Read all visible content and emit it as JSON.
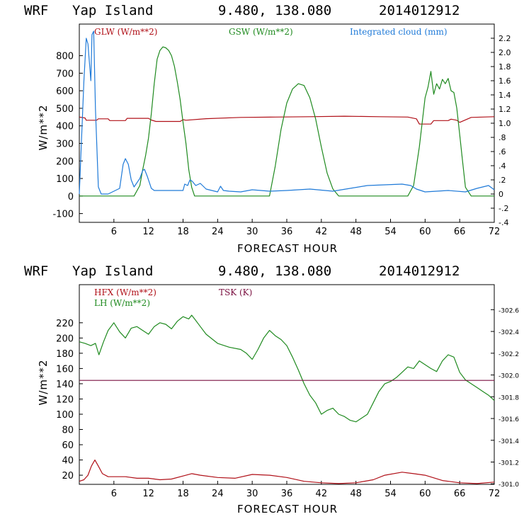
{
  "charts": [
    {
      "title": {
        "model": "WRF",
        "location": "Yap Island",
        "coords": "9.480, 138.080",
        "run": "2014012912"
      },
      "xlabel": "FORECAST HOUR",
      "ylabel": "W/m**2",
      "legend": {
        "glw": "GLW (W/m**2)",
        "gsw": "GSW (W/m**2)",
        "cloud": "Integrated cloud (mm)"
      }
    },
    {
      "title": {
        "model": "WRF",
        "location": "Yap Island",
        "coords": "9.480, 138.080",
        "run": "2014012912"
      },
      "xlabel": "FORECAST HOUR",
      "ylabel": "W/m**2",
      "legend": {
        "hfx": "HFX (W/m**2)",
        "lh": "LH (W/m**2)",
        "tsk": "TSK (K)"
      }
    }
  ],
  "colors": {
    "glw": "#b01018",
    "gsw": "#1f8a1f",
    "cloud": "#1f7ad8",
    "hfx": "#b01018",
    "lh": "#1f8a1f",
    "tsk": "#7a1040"
  },
  "chart_data": [
    {
      "type": "line",
      "xlim": [
        0,
        72
      ],
      "ylim_left": [
        -150,
        980
      ],
      "ylim_right": [
        -0.4,
        2.4
      ],
      "x_ticks": [
        6,
        12,
        18,
        24,
        30,
        36,
        42,
        48,
        54,
        60,
        66,
        72
      ],
      "y_ticks_left": [
        -100,
        0,
        100,
        200,
        300,
        400,
        500,
        600,
        700,
        800
      ],
      "y_ticks_right": [
        "-.4",
        "-.2",
        "0",
        ".2",
        ".4",
        ".6",
        ".8",
        "1.0",
        "1.2",
        "1.4",
        "1.6",
        "1.8",
        "2.0",
        "2.2"
      ],
      "series": [
        {
          "name": "GLW (W/m**2)",
          "axis": "left",
          "x": [
            0,
            1,
            1.2,
            3,
            3.3,
            5,
            5.3,
            8,
            8.3,
            12,
            12.5,
            13.3,
            17.5,
            18,
            18.5,
            22,
            28,
            34,
            40,
            46,
            52,
            57,
            58.5,
            59,
            61,
            61.5,
            64,
            64.5,
            65.5,
            66,
            68,
            72
          ],
          "y": [
            450,
            445,
            432,
            432,
            440,
            440,
            430,
            430,
            443,
            443,
            433,
            425,
            425,
            435,
            432,
            441,
            448,
            450,
            452,
            455,
            452,
            450,
            440,
            410,
            410,
            430,
            430,
            438,
            432,
            420,
            448,
            452
          ]
        },
        {
          "name": "GSW (W/m**2)",
          "axis": "left",
          "x": [
            0,
            9.5,
            10.5,
            11,
            11.5,
            12,
            12.5,
            13,
            13.5,
            14,
            14.5,
            15,
            15.5,
            16,
            16.5,
            17,
            17.5,
            18,
            18.5,
            19,
            19.5,
            20,
            33,
            34,
            35,
            36,
            37,
            38,
            39,
            40,
            41,
            42,
            43,
            44,
            45,
            57,
            58,
            59,
            60,
            60.5,
            61,
            61.5,
            62,
            62.5,
            63,
            63.5,
            64,
            64.5,
            65,
            65.5,
            66,
            66.5,
            67,
            68,
            72
          ],
          "y": [
            0,
            0,
            60,
            150,
            230,
            330,
            470,
            640,
            780,
            830,
            850,
            845,
            830,
            800,
            740,
            650,
            550,
            420,
            300,
            150,
            50,
            0,
            0,
            170,
            380,
            530,
            610,
            640,
            630,
            560,
            440,
            280,
            130,
            40,
            0,
            0,
            60,
            280,
            560,
            620,
            710,
            580,
            640,
            610,
            665,
            640,
            670,
            600,
            590,
            500,
            350,
            200,
            50,
            0,
            0
          ]
        },
        {
          "name": "Integrated cloud (mm)",
          "axis": "right",
          "x": [
            0,
            0.8,
            1.2,
            1.5,
            2,
            2.2,
            2.5,
            2.8,
            3.3,
            3.8,
            5,
            7,
            7.6,
            8,
            8.5,
            9,
            9.5,
            10.5,
            11,
            11.3,
            11.8,
            12.5,
            13,
            18,
            18.3,
            18.8,
            19.2,
            19.6,
            20.2,
            21,
            22,
            23,
            24,
            24.5,
            25,
            26,
            28,
            30,
            33,
            36,
            40,
            44,
            50,
            56,
            57.5,
            58.5,
            60,
            64,
            67,
            69,
            71,
            72
          ],
          "y": [
            0,
            1.6,
            2.2,
            2.12,
            1.6,
            2.25,
            2.3,
            1.2,
            0.1,
            0,
            0,
            0.08,
            0.42,
            0.5,
            0.42,
            0.2,
            0.1,
            0.22,
            0.33,
            0.35,
            0.25,
            0.08,
            0.05,
            0.05,
            0.14,
            0.12,
            0.2,
            0.18,
            0.12,
            0.15,
            0.07,
            0.05,
            0.03,
            0.11,
            0.05,
            0.04,
            0.03,
            0.06,
            0.04,
            0.05,
            0.07,
            0.04,
            0.12,
            0.14,
            0.12,
            0.07,
            0.03,
            0.05,
            0.03,
            0.08,
            0.12,
            0.06
          ]
        }
      ]
    },
    {
      "type": "line",
      "xlim": [
        0,
        72
      ],
      "ylim_left": [
        8,
        270
      ],
      "ylim_right": [
        300.995,
        302.83
      ],
      "x_ticks": [
        6,
        12,
        18,
        24,
        30,
        36,
        42,
        48,
        54,
        60,
        66,
        72
      ],
      "y_ticks_left": [
        20,
        40,
        60,
        80,
        100,
        120,
        140,
        160,
        180,
        200,
        220
      ],
      "y_ticks_right": [
        "301.0",
        "301.2",
        "301.4",
        "301.6",
        "301.8",
        "302.0",
        "302.2",
        "302.4",
        "302.6"
      ],
      "series": [
        {
          "name": "HFX (W/m**2)",
          "axis": "left",
          "x": [
            0,
            0.8,
            1.5,
            2.1,
            2.7,
            3.3,
            4,
            5,
            6,
            8,
            10,
            12,
            14,
            16,
            18,
            19.5,
            21,
            24,
            27,
            30,
            33,
            36,
            39,
            42,
            45,
            48,
            51,
            53,
            56,
            58,
            60,
            63,
            66,
            69,
            72
          ],
          "y": [
            12,
            14,
            20,
            32,
            40,
            32,
            22,
            18,
            18,
            18,
            16,
            16,
            14,
            15,
            19,
            22,
            20,
            17,
            16,
            21,
            20,
            17,
            12,
            10,
            9,
            10,
            14,
            20,
            24,
            22,
            20,
            13,
            10,
            9,
            11
          ]
        },
        {
          "name": "LH (W/m**2)",
          "axis": "left",
          "x": [
            0,
            1,
            2,
            2.8,
            3.4,
            4.2,
            5,
            6,
            7,
            8,
            9,
            10,
            11,
            12,
            13,
            14,
            15,
            16,
            17,
            18,
            19,
            19.5,
            20,
            21,
            22,
            24,
            26,
            28,
            29,
            30,
            31,
            32,
            33,
            34,
            35,
            36,
            37,
            38,
            39,
            40,
            41,
            42,
            43,
            44,
            45,
            46,
            47,
            48,
            49,
            50,
            51,
            52,
            53,
            54,
            55,
            56,
            57,
            58,
            59,
            60,
            61,
            62,
            63,
            64,
            65,
            66,
            67,
            68,
            69,
            70,
            71,
            72
          ],
          "y": [
            195,
            193,
            190,
            193,
            178,
            195,
            210,
            220,
            208,
            200,
            213,
            215,
            210,
            205,
            215,
            220,
            218,
            212,
            222,
            228,
            225,
            230,
            225,
            215,
            205,
            193,
            188,
            185,
            180,
            172,
            185,
            200,
            210,
            203,
            198,
            190,
            175,
            158,
            140,
            125,
            115,
            100,
            105,
            108,
            100,
            97,
            92,
            90,
            95,
            100,
            115,
            130,
            140,
            143,
            148,
            155,
            162,
            160,
            170,
            165,
            160,
            156,
            170,
            178,
            175,
            155,
            145,
            140,
            135,
            130,
            125,
            118
          ]
        },
        {
          "name": "TSK (K)",
          "axis": "right",
          "x": [
            0,
            72
          ],
          "y": [
            301.95,
            301.95
          ]
        }
      ]
    }
  ]
}
